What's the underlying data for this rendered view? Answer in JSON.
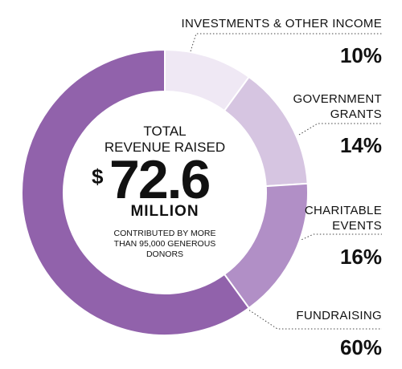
{
  "chart_data": {
    "type": "donut",
    "categories": [
      "INVESTMENTS & OTHER INCOME",
      "GOVERNMENT GRANTS",
      "CHARITABLE EVENTS",
      "FUNDRAISING"
    ],
    "values": [
      10,
      14,
      16,
      60
    ],
    "value_labels": [
      "10%",
      "14%",
      "16%",
      "60%"
    ],
    "colors": [
      "#efe8f4",
      "#d6c5e1",
      "#b18fc6",
      "#9162ab"
    ],
    "center": {
      "title_lines": [
        "TOTAL",
        "REVENUE RAISED"
      ],
      "amount_symbol": "$",
      "amount": "72.6",
      "unit": "MILLION",
      "note": "CONTRIBUTED BY MORE THAN 95,000 GENEROUS DONORS"
    }
  }
}
